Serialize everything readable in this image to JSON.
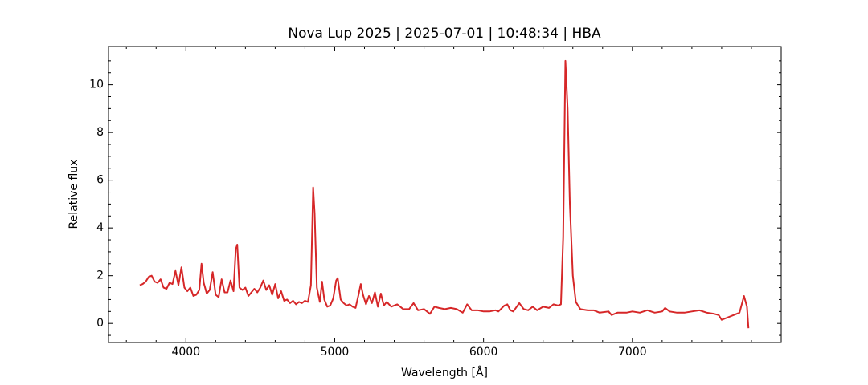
{
  "chart_data": {
    "type": "line",
    "title": "Nova Lup 2025 | 2025-07-01 | 10:48:34 | HBA",
    "x_label": "Wavelength [Å]",
    "y_label": "Relative flux",
    "xlim": [
      3480,
      8000
    ],
    "ylim": [
      -0.8,
      11.6
    ],
    "xticks": [
      4000,
      5000,
      6000,
      7000
    ],
    "yticks": [
      0,
      2,
      4,
      6,
      8,
      10
    ],
    "xminorticks": [
      3600,
      3800,
      4200,
      4400,
      4600,
      4800,
      5200,
      5400,
      5600,
      5800,
      6200,
      6400,
      6600,
      6800,
      7200,
      7400,
      7600,
      7800
    ],
    "yminorticks": [
      -0.5,
      0.5,
      1,
      1.5,
      2.5,
      3,
      3.5,
      4.5,
      5,
      5.5,
      6.5,
      7,
      7.5,
      8.5,
      9,
      9.5,
      10.5,
      11
    ],
    "tick_direction": "in",
    "series": [
      {
        "color": "#d62728",
        "x": [
          3690,
          3710,
          3730,
          3750,
          3770,
          3790,
          3810,
          3830,
          3850,
          3870,
          3890,
          3910,
          3930,
          3950,
          3970,
          3990,
          4010,
          4030,
          4050,
          4070,
          4090,
          4105,
          4120,
          4140,
          4160,
          4180,
          4200,
          4220,
          4240,
          4260,
          4280,
          4300,
          4320,
          4335,
          4345,
          4360,
          4380,
          4400,
          4420,
          4440,
          4460,
          4480,
          4500,
          4520,
          4540,
          4560,
          4580,
          4600,
          4620,
          4640,
          4660,
          4680,
          4700,
          4720,
          4740,
          4760,
          4780,
          4800,
          4820,
          4840,
          4855,
          4865,
          4880,
          4900,
          4915,
          4930,
          4950,
          4970,
          4990,
          5010,
          5020,
          5040,
          5060,
          5080,
          5100,
          5120,
          5140,
          5160,
          5175,
          5190,
          5210,
          5230,
          5250,
          5270,
          5290,
          5310,
          5330,
          5350,
          5380,
          5420,
          5460,
          5500,
          5530,
          5560,
          5600,
          5640,
          5670,
          5700,
          5740,
          5780,
          5820,
          5860,
          5890,
          5920,
          5960,
          6000,
          6040,
          6080,
          6100,
          6140,
          6160,
          6180,
          6200,
          6240,
          6270,
          6300,
          6330,
          6360,
          6400,
          6440,
          6470,
          6500,
          6520,
          6535,
          6550,
          6565,
          6580,
          6600,
          6620,
          6650,
          6700,
          6740,
          6780,
          6840,
          6860,
          6900,
          6960,
          7000,
          7050,
          7100,
          7150,
          7200,
          7220,
          7250,
          7300,
          7350,
          7400,
          7450,
          7500,
          7550,
          7580,
          7600,
          7640,
          7680,
          7720,
          7750,
          7770,
          7780
        ],
        "values": [
          1.6,
          1.65,
          1.75,
          1.95,
          2.0,
          1.75,
          1.7,
          1.85,
          1.5,
          1.45,
          1.7,
          1.65,
          2.2,
          1.6,
          2.35,
          1.5,
          1.35,
          1.5,
          1.15,
          1.2,
          1.4,
          2.5,
          1.7,
          1.25,
          1.4,
          2.15,
          1.2,
          1.1,
          1.85,
          1.3,
          1.3,
          1.8,
          1.35,
          3.1,
          3.3,
          1.5,
          1.4,
          1.5,
          1.15,
          1.3,
          1.45,
          1.3,
          1.5,
          1.8,
          1.4,
          1.6,
          1.2,
          1.65,
          1.05,
          1.35,
          0.95,
          1.0,
          0.85,
          0.95,
          0.8,
          0.9,
          0.85,
          0.95,
          0.9,
          1.6,
          5.7,
          4.6,
          1.5,
          0.9,
          1.75,
          1.0,
          0.7,
          0.75,
          1.05,
          1.8,
          1.9,
          1.0,
          0.85,
          0.75,
          0.8,
          0.7,
          0.65,
          1.2,
          1.65,
          1.2,
          0.8,
          1.15,
          0.85,
          1.3,
          0.7,
          1.25,
          0.75,
          0.9,
          0.7,
          0.8,
          0.6,
          0.6,
          0.85,
          0.55,
          0.6,
          0.4,
          0.7,
          0.65,
          0.6,
          0.65,
          0.6,
          0.45,
          0.8,
          0.55,
          0.55,
          0.5,
          0.5,
          0.55,
          0.5,
          0.75,
          0.8,
          0.55,
          0.5,
          0.85,
          0.6,
          0.55,
          0.7,
          0.55,
          0.7,
          0.65,
          0.8,
          0.75,
          0.8,
          3.6,
          11.0,
          9.0,
          5.0,
          2.0,
          0.9,
          0.6,
          0.55,
          0.55,
          0.45,
          0.5,
          0.35,
          0.45,
          0.45,
          0.5,
          0.45,
          0.55,
          0.45,
          0.5,
          0.65,
          0.5,
          0.45,
          0.45,
          0.5,
          0.55,
          0.45,
          0.4,
          0.35,
          0.15,
          0.25,
          0.35,
          0.45,
          1.15,
          0.7,
          -0.2
        ]
      }
    ]
  }
}
